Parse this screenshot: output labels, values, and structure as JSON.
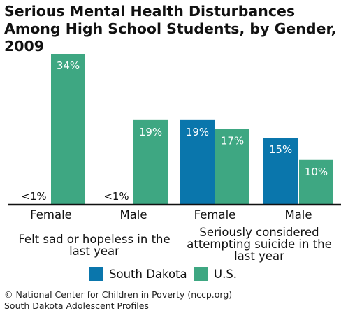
{
  "title": "Serious Mental Health Disturbances Among High School Students, by Gender, 2009",
  "colors": {
    "south_dakota": "#0a76ac",
    "us": "#3ea782"
  },
  "chart_data": {
    "type": "bar",
    "title": "Serious Mental Health Disturbances Among High School Students, by Gender, 2009",
    "ylim": [
      0,
      35
    ],
    "grid": false,
    "legend_position": "bottom",
    "categories": [
      "Female",
      "Male",
      "Female",
      "Male"
    ],
    "groups": [
      {
        "label": "Felt sad or hopeless in the last year",
        "categories": [
          "Female",
          "Male"
        ]
      },
      {
        "label": "Seriously considered attempting suicide in the last year",
        "categories": [
          "Female",
          "Male"
        ]
      }
    ],
    "series": [
      {
        "name": "South Dakota",
        "values": [
          0.5,
          0.5,
          19,
          15
        ],
        "labels": [
          "<1%",
          "<1%",
          "19%",
          "15%"
        ]
      },
      {
        "name": "U.S.",
        "values": [
          34,
          19,
          17,
          10
        ],
        "labels": [
          "34%",
          "19%",
          "17%",
          "10%"
        ]
      }
    ]
  },
  "footer": {
    "line1": "© National Center for Children in Poverty (nccp.org)",
    "line2": "South Dakota Adolescent Profiles"
  }
}
